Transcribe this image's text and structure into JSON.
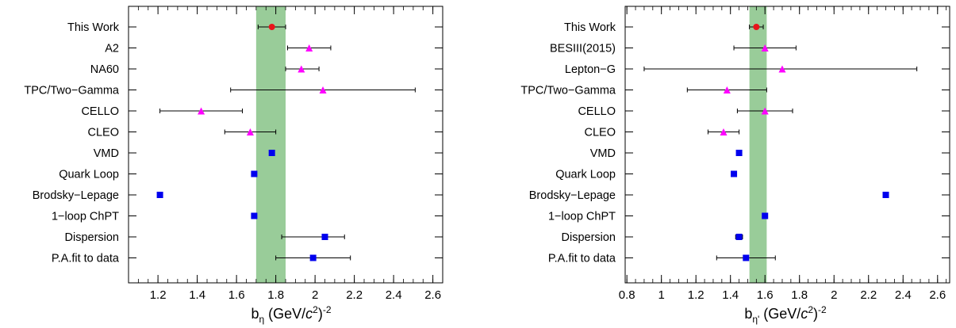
{
  "chart_data": [
    {
      "type": "scatter",
      "xlabel": "b_η (GeV/c²)⁻²",
      "xlim": [
        1.05,
        2.65
      ],
      "xticks": [
        "1.2",
        "1.4",
        "1.6",
        "1.8",
        "2",
        "2.2",
        "2.4",
        "2.6"
      ],
      "band": {
        "low": 1.7,
        "high": 1.85,
        "color": "#99cc99"
      },
      "categories": [
        "This Work",
        "A2",
        "NA60",
        "TPC/Two−Gamma",
        "CELLO",
        "CLEO",
        "VMD",
        "Quark Loop",
        "Brodsky−Lepage",
        "1−loop ChPT",
        "Dispersion",
        "P.A.fit to data"
      ],
      "points": [
        {
          "value": 1.78,
          "err": [
            1.71,
            1.85
          ],
          "marker": "circle",
          "color": "#e8141b"
        },
        {
          "value": 1.97,
          "err": [
            1.86,
            2.08
          ],
          "marker": "triangle",
          "color": "#ff00ff"
        },
        {
          "value": 1.93,
          "err": [
            1.85,
            2.02
          ],
          "marker": "triangle",
          "color": "#ff00ff"
        },
        {
          "value": 2.04,
          "err": [
            1.57,
            2.51
          ],
          "marker": "triangle",
          "color": "#ff00ff"
        },
        {
          "value": 1.42,
          "err": [
            1.21,
            1.63
          ],
          "marker": "triangle",
          "color": "#ff00ff"
        },
        {
          "value": 1.67,
          "err": [
            1.54,
            1.8
          ],
          "marker": "triangle",
          "color": "#ff00ff"
        },
        {
          "value": 1.78,
          "err": null,
          "marker": "square",
          "color": "#0000ee"
        },
        {
          "value": 1.69,
          "err": null,
          "marker": "square",
          "color": "#0000ee"
        },
        {
          "value": 1.21,
          "err": null,
          "marker": "square",
          "color": "#0000ee"
        },
        {
          "value": 1.69,
          "err": null,
          "marker": "square",
          "color": "#0000ee"
        },
        {
          "value": 2.05,
          "err": [
            1.83,
            2.15
          ],
          "marker": "square",
          "color": "#0000ee"
        },
        {
          "value": 1.99,
          "err": [
            1.8,
            2.18
          ],
          "marker": "square",
          "color": "#0000ee"
        }
      ]
    },
    {
      "type": "scatter",
      "xlabel": "b_η' (GeV/c²)⁻²",
      "xlim": [
        0.79,
        2.67
      ],
      "xticks": [
        "0.8",
        "1",
        "1.2",
        "1.4",
        "1.6",
        "1.8",
        "2",
        "2.2",
        "2.4",
        "2.6"
      ],
      "band": {
        "low": 1.51,
        "high": 1.61,
        "color": "#99cc99"
      },
      "categories": [
        "This Work",
        "BESIII(2015)",
        "Lepton−G",
        "TPC/Two−Gamma",
        "CELLO",
        "CLEO",
        "VMD",
        "Quark Loop",
        "Brodsky−Lepage",
        "1−loop ChPT",
        "Dispersion",
        "P.A.fit to data"
      ],
      "points": [
        {
          "value": 1.55,
          "err": [
            1.51,
            1.59
          ],
          "marker": "circle",
          "color": "#e8141b"
        },
        {
          "value": 1.6,
          "err": [
            1.42,
            1.78
          ],
          "marker": "triangle",
          "color": "#ff00ff"
        },
        {
          "value": 1.7,
          "err": [
            0.9,
            2.48
          ],
          "marker": "triangle",
          "color": "#ff00ff"
        },
        {
          "value": 1.38,
          "err": [
            1.15,
            1.61
          ],
          "marker": "triangle",
          "color": "#ff00ff"
        },
        {
          "value": 1.6,
          "err": [
            1.44,
            1.76
          ],
          "marker": "triangle",
          "color": "#ff00ff"
        },
        {
          "value": 1.36,
          "err": [
            1.27,
            1.45
          ],
          "marker": "triangle",
          "color": "#ff00ff"
        },
        {
          "value": 1.45,
          "err": null,
          "marker": "square",
          "color": "#0000ee"
        },
        {
          "value": 1.42,
          "err": null,
          "marker": "square",
          "color": "#0000ee"
        },
        {
          "value": 2.3,
          "err": null,
          "marker": "square",
          "color": "#0000ee"
        },
        {
          "value": 1.6,
          "err": null,
          "marker": "square",
          "color": "#0000ee"
        },
        {
          "value": 1.45,
          "err": [
            1.43,
            1.47
          ],
          "marker": "square",
          "color": "#0000ee"
        },
        {
          "value": 1.49,
          "err": [
            1.32,
            1.66
          ],
          "marker": "square",
          "color": "#0000ee"
        }
      ]
    }
  ]
}
